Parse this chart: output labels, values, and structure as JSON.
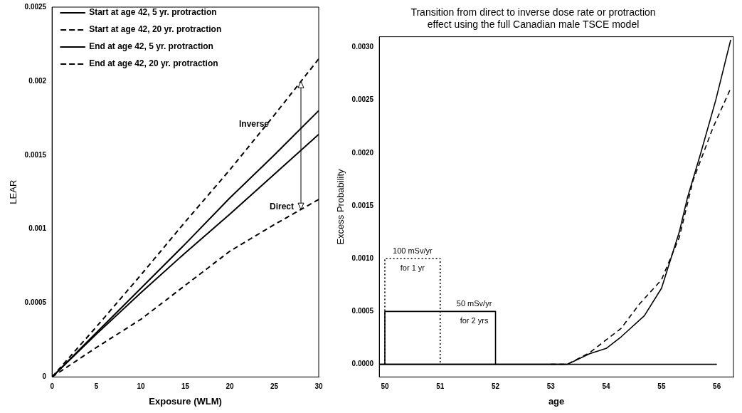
{
  "chart_data": [
    {
      "type": "line",
      "xlabel": "Exposure (WLM)",
      "ylabel": "LEAR",
      "x": [
        0,
        5,
        10,
        15,
        20,
        25,
        30
      ],
      "series": [
        {
          "name": "Start at age 42, 5 yr. protraction",
          "color": "#000000",
          "line_style": "solid",
          "values": [
            0,
            0.0003,
            0.0006,
            0.0009,
            0.00121,
            0.0015,
            0.0018
          ]
        },
        {
          "name": "Start at age 42, 20 yr. protraction",
          "color": "#000000",
          "line_style": "dashed",
          "values": [
            0,
            0.00034,
            0.00069,
            0.00105,
            0.0014,
            0.00177,
            0.00215
          ]
        },
        {
          "name": "End at age 42, 5 yr. protraction",
          "color": "#000000",
          "line_style": "solid",
          "values": [
            0,
            0.00029,
            0.00057,
            0.00084,
            0.0011,
            0.00137,
            0.00164
          ]
        },
        {
          "name": "End at age 42, 20 yr. protraction",
          "color": "#000000",
          "line_style": "dashed",
          "values": [
            0,
            0.0002,
            0.00039,
            0.00062,
            0.00085,
            0.00103,
            0.0012
          ]
        }
      ],
      "xlim": [
        0,
        30
      ],
      "xticks": [
        0,
        5,
        10,
        15,
        20,
        25,
        30
      ],
      "ylim": [
        0,
        0.0025
      ],
      "yticks": [
        0,
        0.0005,
        0.001,
        0.0015,
        0.002,
        0.0025
      ],
      "annotations": [
        "Inverse",
        "Direct"
      ],
      "legend": "top left",
      "grid": false,
      "marker": "none"
    },
    {
      "type": "line",
      "title": "Transition from direct to inverse dose rate or protraction\neffect using the full Canadian male TSCE model",
      "xlabel": "age",
      "ylabel": "Excess Probability",
      "series": [
        {
          "color": "#000000",
          "line_style": "dotted",
          "x": [
            50,
            50,
            51,
            51
          ],
          "values": [
            0,
            0.001,
            0.001,
            0
          ]
        },
        {
          "color": "#000000",
          "line_style": "solid",
          "x": [
            50,
            50,
            52,
            52
          ],
          "values": [
            0,
            0.0005,
            0.0005,
            0
          ]
        },
        {
          "color": "#000000",
          "line_style": "solid",
          "x": [
            49.9,
            56
          ],
          "values": [
            0,
            0
          ]
        },
        {
          "color": "#000000",
          "line_style": "solid",
          "x": [
            49.9,
            52.5,
            53,
            53.3,
            53.7,
            54,
            54.27,
            54.69,
            55,
            55.32,
            55.47,
            55.71,
            55.98,
            56.25
          ],
          "values": [
            0,
            0,
            0,
            0,
            0.0001,
            0.00015,
            0.00026,
            0.00046,
            0.00072,
            0.00125,
            0.00158,
            0.002,
            0.0025,
            0.00307
          ]
        },
        {
          "color": "#000000",
          "line_style": "dashed",
          "x": [
            53,
            53.3,
            53.7,
            54.27,
            54.6,
            55,
            55.32,
            55.57,
            55.93,
            56.24
          ],
          "values": [
            0,
            0,
            0.00011,
            0.00034,
            0.00057,
            0.0008,
            0.0012,
            0.00174,
            0.00224,
            0.0026
          ]
        }
      ],
      "xlim": [
        49.9,
        56.3
      ],
      "xticks": [
        50,
        51,
        52,
        53,
        54,
        55,
        56
      ],
      "ylim": [
        -0.00012,
        0.0031
      ],
      "yticks": [
        {
          "value": 0,
          "label": "0.0000"
        },
        {
          "value": 0.0005,
          "label": "0.0005"
        },
        {
          "value": 0.001,
          "label": "0.0010"
        },
        {
          "value": 0.0015,
          "label": "0.0015"
        },
        {
          "value": 0.002,
          "label": "0.0020"
        },
        {
          "value": 0.0025,
          "label": "0.0025"
        },
        {
          "value": 0.003,
          "label": "0.0030"
        }
      ],
      "annotations": [
        "100 mSv/yr",
        "for 1 yr",
        "50 mSv/yr",
        "for 2 yrs"
      ],
      "legend": false,
      "grid": false,
      "marker": "none"
    }
  ]
}
